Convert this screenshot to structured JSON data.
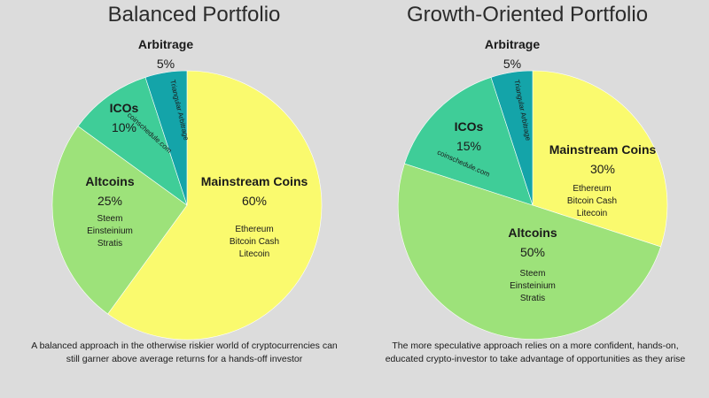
{
  "chart_data": [
    {
      "type": "pie",
      "title": "Balanced Portfolio",
      "caption": "A balanced approach in the otherwise riskier world of cryptocurrencies can still garner above average returns for a hands-off investor",
      "slices": [
        {
          "label": "Mainstream Coins",
          "percent_label": "60%",
          "value": 60,
          "color": "#fafa6e",
          "examples": [
            "Ethereum",
            "Bitcoin Cash",
            "Litecoin"
          ]
        },
        {
          "label": "Altcoins",
          "percent_label": "25%",
          "value": 25,
          "color": "#9de27a",
          "examples": [
            "Steem",
            "Einsteinium",
            "Stratis"
          ]
        },
        {
          "label": "ICOs",
          "percent_label": "10%",
          "value": 10,
          "color": "#3fcd98",
          "annotation": "coinschedule.com"
        },
        {
          "label": "Arbitrage",
          "percent_label": "5%",
          "value": 5,
          "color": "#14a4a9",
          "annotation": "Triangular Arbitrage"
        }
      ]
    },
    {
      "type": "pie",
      "title": "Growth-Oriented Portfolio",
      "caption": "The more speculative approach relies on a more confident, hands-on, educated crypto-investor to take advantage of opportunities as they arise",
      "slices": [
        {
          "label": "Mainstream Coins",
          "percent_label": "30%",
          "value": 30,
          "color": "#fafa6e",
          "examples": [
            "Ethereum",
            "Bitcoin Cash",
            "Litecoin"
          ]
        },
        {
          "label": "Altcoins",
          "percent_label": "50%",
          "value": 50,
          "color": "#9de27a",
          "examples": [
            "Steem",
            "Einsteinium",
            "Stratis"
          ]
        },
        {
          "label": "ICOs",
          "percent_label": "15%",
          "value": 15,
          "color": "#3fcd98",
          "annotation": "coinschedule.com"
        },
        {
          "label": "Arbitrage",
          "percent_label": "5%",
          "value": 5,
          "color": "#14a4a9",
          "annotation": "Triangular Arbitrage"
        }
      ]
    }
  ]
}
